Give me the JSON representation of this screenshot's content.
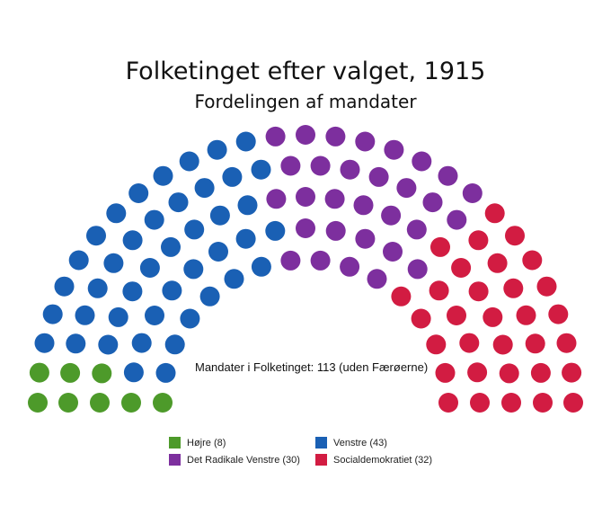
{
  "chart_data": {
    "type": "parliament",
    "title": "Folketinget efter valget, 1915",
    "subtitle": "Fordelingen af mandater",
    "annotation": "Mandater i Folketinget: 113 (uden Færøerne)",
    "total": 113,
    "series": [
      {
        "name": "Højre",
        "seats": 8,
        "color": "#4d9a2a",
        "legend": "Højre (8)"
      },
      {
        "name": "Venstre",
        "seats": 43,
        "color": "#1a60b4",
        "legend": "Venstre (43)"
      },
      {
        "name": "Det Radikale Venstre",
        "seats": 30,
        "color": "#7d2f9e",
        "legend": "Det Radikale Venstre (30)"
      },
      {
        "name": "Socialdemokratiet",
        "seats": 32,
        "color": "#d21c42",
        "legend": "Socialdemokratiet (32)"
      }
    ]
  }
}
